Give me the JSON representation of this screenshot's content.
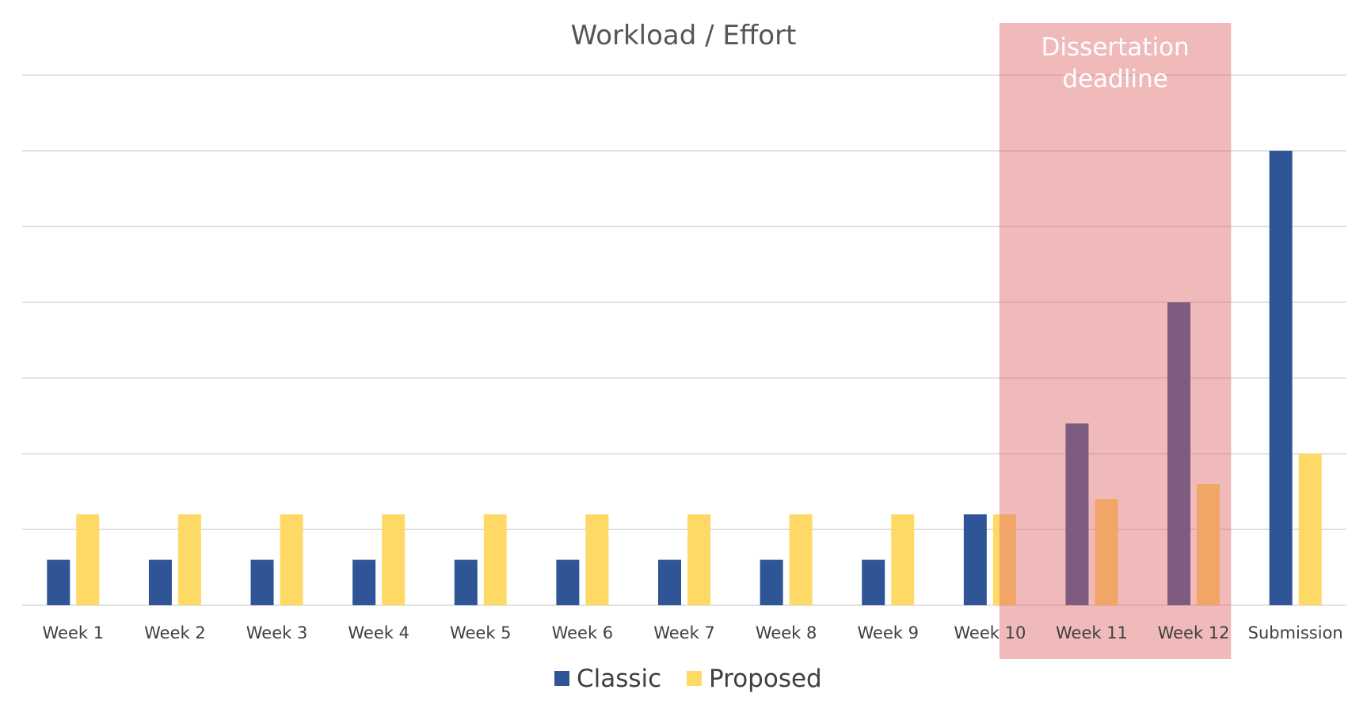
{
  "chart_data": {
    "type": "bar",
    "title": "Workload / Effort",
    "xlabel": "",
    "ylabel": "",
    "categories": [
      "Week 1",
      "Week 2",
      "Week 3",
      "Week 4",
      "Week 5",
      "Week 6",
      "Week 7",
      "Week 8",
      "Week 9",
      "Week 10",
      "Week 11",
      "Week 12",
      "Submission"
    ],
    "series": [
      {
        "name": "Classic",
        "color": "#2F5597",
        "values": [
          0.6,
          0.6,
          0.6,
          0.6,
          0.6,
          0.6,
          0.6,
          0.6,
          0.6,
          1.2,
          2.4,
          4.0,
          6.0
        ]
      },
      {
        "name": "Proposed",
        "color": "#FFD966",
        "values": [
          1.2,
          1.2,
          1.2,
          1.2,
          1.2,
          1.2,
          1.2,
          1.2,
          1.2,
          1.2,
          1.4,
          1.6,
          2.0
        ]
      }
    ],
    "ylim": [
      0,
      7
    ],
    "grid": true,
    "y_tick_labels_shown": false,
    "legend_position": "bottom",
    "annotation": {
      "text_lines": [
        "Dissertation",
        "deadline"
      ],
      "span_categories": [
        "Week 10",
        "Week 12"
      ],
      "color": "#E06666",
      "opacity": 0.45
    }
  }
}
